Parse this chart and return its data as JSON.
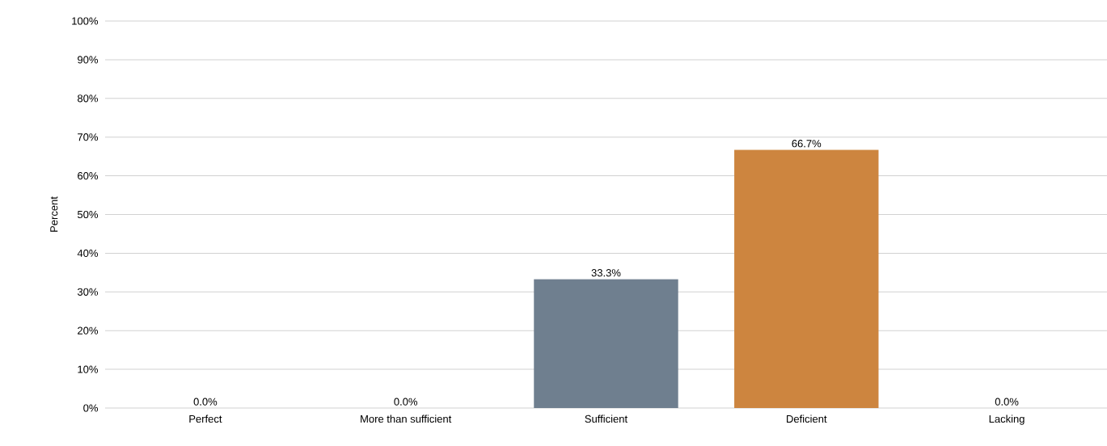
{
  "chart_data": {
    "type": "bar",
    "ylabel": "Percent",
    "categories": [
      "Perfect",
      "More than sufficient",
      "Sufficient",
      "Deficient",
      "Lacking"
    ],
    "values": [
      0,
      0,
      33.3,
      66.7,
      0
    ],
    "colors": [
      "#6f7f8f",
      "#6f7f8f",
      "#6f7f8f",
      "#cd853f",
      "#6f7f8f"
    ],
    "value_labels": [
      "0.0%",
      "0.0%",
      "33.3%",
      "66.7%",
      "0.0%"
    ],
    "ylim": [
      0,
      100
    ],
    "yticks": [
      {
        "value": 0,
        "label": "0%"
      },
      {
        "value": 10,
        "label": "10%"
      },
      {
        "value": 20,
        "label": "20%"
      },
      {
        "value": 30,
        "label": "30%"
      },
      {
        "value": 40,
        "label": "40%"
      },
      {
        "value": 50,
        "label": "50%"
      },
      {
        "value": 60,
        "label": "60%"
      },
      {
        "value": 70,
        "label": "70%"
      },
      {
        "value": 80,
        "label": "80%"
      },
      {
        "value": 90,
        "label": "90%"
      },
      {
        "value": 100,
        "label": "100%"
      }
    ],
    "grid": "y"
  }
}
